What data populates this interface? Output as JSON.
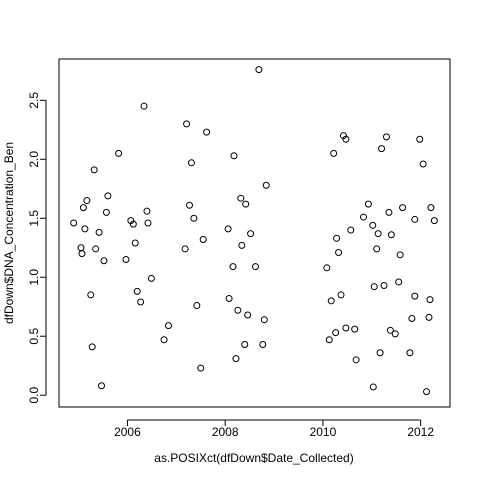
{
  "chart_data": {
    "type": "scatter",
    "xlabel": "as.POSIXct(dfDown$Date_Collected)",
    "ylabel": "dfDown$DNA_Concentration_Ben",
    "xlim": [
      2004.6,
      2012.6
    ],
    "ylim": [
      -0.1,
      2.85
    ],
    "x_ticks": [
      2006,
      2008,
      2010,
      2012
    ],
    "x_tick_labels": [
      "2006",
      "2008",
      "2010",
      "2012"
    ],
    "y_ticks": [
      0.0,
      0.5,
      1.0,
      1.5,
      2.0,
      2.5
    ],
    "y_tick_labels": [
      "0.0",
      "0.5",
      "1.0",
      "1.5",
      "2.0",
      "2.5"
    ],
    "grid": false,
    "marker": "open-circle",
    "points": [
      {
        "x": 2004.9,
        "y": 1.46
      },
      {
        "x": 2005.05,
        "y": 1.25
      },
      {
        "x": 2005.07,
        "y": 1.2
      },
      {
        "x": 2005.1,
        "y": 1.59
      },
      {
        "x": 2005.13,
        "y": 1.41
      },
      {
        "x": 2005.17,
        "y": 1.65
      },
      {
        "x": 2005.25,
        "y": 0.85
      },
      {
        "x": 2005.28,
        "y": 0.41
      },
      {
        "x": 2005.32,
        "y": 1.91
      },
      {
        "x": 2005.35,
        "y": 1.24
      },
      {
        "x": 2005.42,
        "y": 1.38
      },
      {
        "x": 2005.47,
        "y": 0.08
      },
      {
        "x": 2005.52,
        "y": 1.14
      },
      {
        "x": 2005.57,
        "y": 1.55
      },
      {
        "x": 2005.6,
        "y": 1.69
      },
      {
        "x": 2005.82,
        "y": 2.05
      },
      {
        "x": 2005.97,
        "y": 1.15
      },
      {
        "x": 2006.07,
        "y": 1.48
      },
      {
        "x": 2006.12,
        "y": 1.45
      },
      {
        "x": 2006.16,
        "y": 1.29
      },
      {
        "x": 2006.2,
        "y": 0.88
      },
      {
        "x": 2006.27,
        "y": 0.79
      },
      {
        "x": 2006.34,
        "y": 2.45
      },
      {
        "x": 2006.4,
        "y": 1.56
      },
      {
        "x": 2006.42,
        "y": 1.46
      },
      {
        "x": 2006.49,
        "y": 0.99
      },
      {
        "x": 2006.75,
        "y": 0.47
      },
      {
        "x": 2006.84,
        "y": 0.59
      },
      {
        "x": 2007.18,
        "y": 1.24
      },
      {
        "x": 2007.21,
        "y": 2.3
      },
      {
        "x": 2007.27,
        "y": 1.61
      },
      {
        "x": 2007.31,
        "y": 1.97
      },
      {
        "x": 2007.36,
        "y": 1.5
      },
      {
        "x": 2007.42,
        "y": 0.76
      },
      {
        "x": 2007.5,
        "y": 0.23
      },
      {
        "x": 2007.55,
        "y": 1.32
      },
      {
        "x": 2007.62,
        "y": 2.23
      },
      {
        "x": 2008.06,
        "y": 1.41
      },
      {
        "x": 2008.08,
        "y": 0.82
      },
      {
        "x": 2008.16,
        "y": 1.09
      },
      {
        "x": 2008.18,
        "y": 2.03
      },
      {
        "x": 2008.22,
        "y": 0.31
      },
      {
        "x": 2008.26,
        "y": 0.72
      },
      {
        "x": 2008.32,
        "y": 1.67
      },
      {
        "x": 2008.34,
        "y": 1.27
      },
      {
        "x": 2008.4,
        "y": 0.43
      },
      {
        "x": 2008.42,
        "y": 1.62
      },
      {
        "x": 2008.46,
        "y": 0.68
      },
      {
        "x": 2008.52,
        "y": 1.37
      },
      {
        "x": 2008.62,
        "y": 1.09
      },
      {
        "x": 2008.69,
        "y": 2.76
      },
      {
        "x": 2008.77,
        "y": 0.43
      },
      {
        "x": 2008.8,
        "y": 0.64
      },
      {
        "x": 2008.84,
        "y": 1.78
      },
      {
        "x": 2010.08,
        "y": 1.08
      },
      {
        "x": 2010.13,
        "y": 0.47
      },
      {
        "x": 2010.17,
        "y": 0.8
      },
      {
        "x": 2010.22,
        "y": 2.05
      },
      {
        "x": 2010.26,
        "y": 0.53
      },
      {
        "x": 2010.28,
        "y": 1.33
      },
      {
        "x": 2010.32,
        "y": 1.21
      },
      {
        "x": 2010.37,
        "y": 0.85
      },
      {
        "x": 2010.42,
        "y": 2.2
      },
      {
        "x": 2010.47,
        "y": 2.17
      },
      {
        "x": 2010.47,
        "y": 0.57
      },
      {
        "x": 2010.57,
        "y": 1.4
      },
      {
        "x": 2010.65,
        "y": 0.56
      },
      {
        "x": 2010.68,
        "y": 0.3
      },
      {
        "x": 2010.83,
        "y": 1.51
      },
      {
        "x": 2010.93,
        "y": 1.62
      },
      {
        "x": 2011.02,
        "y": 1.44
      },
      {
        "x": 2011.05,
        "y": 0.92
      },
      {
        "x": 2011.1,
        "y": 1.24
      },
      {
        "x": 2011.13,
        "y": 1.37
      },
      {
        "x": 2011.17,
        "y": 0.36
      },
      {
        "x": 2011.2,
        "y": 2.09
      },
      {
        "x": 2011.25,
        "y": 0.93
      },
      {
        "x": 2011.3,
        "y": 2.19
      },
      {
        "x": 2011.35,
        "y": 1.55
      },
      {
        "x": 2011.38,
        "y": 0.55
      },
      {
        "x": 2011.4,
        "y": 1.36
      },
      {
        "x": 2011.48,
        "y": 0.52
      },
      {
        "x": 2011.55,
        "y": 0.96
      },
      {
        "x": 2011.58,
        "y": 1.19
      },
      {
        "x": 2011.63,
        "y": 1.59
      },
      {
        "x": 2011.78,
        "y": 0.36
      },
      {
        "x": 2011.82,
        "y": 0.65
      },
      {
        "x": 2011.88,
        "y": 1.49
      },
      {
        "x": 2011.88,
        "y": 0.84
      },
      {
        "x": 2011.98,
        "y": 2.17
      },
      {
        "x": 2012.05,
        "y": 1.96
      },
      {
        "x": 2012.12,
        "y": 0.03
      },
      {
        "x": 2012.17,
        "y": 0.66
      },
      {
        "x": 2012.19,
        "y": 0.81
      },
      {
        "x": 2012.21,
        "y": 1.59
      },
      {
        "x": 2012.28,
        "y": 1.48
      },
      {
        "x": 2011.03,
        "y": 0.07
      }
    ]
  }
}
